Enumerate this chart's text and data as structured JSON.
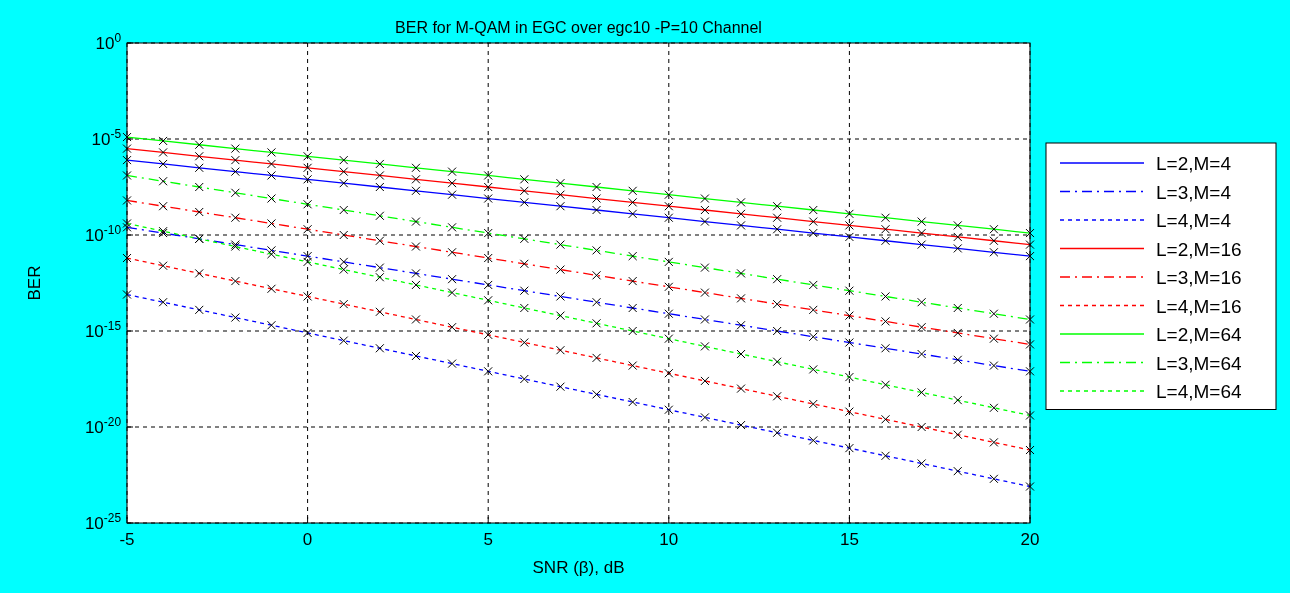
{
  "chart_data": {
    "type": "line",
    "title": "BER for M-QAM in EGC over egc10  -P=10 Channel",
    "xlabel": "SNR (β), dB",
    "ylabel": "BER",
    "x": [
      -5,
      -4,
      -3,
      -2,
      -1,
      0,
      1,
      2,
      3,
      4,
      5,
      6,
      7,
      8,
      9,
      10,
      11,
      12,
      13,
      14,
      15,
      16,
      17,
      18,
      19,
      20
    ],
    "xlim": [
      -5,
      20
    ],
    "xticks": [
      -5,
      0,
      5,
      10,
      15,
      20
    ],
    "ylim": [
      1e-25,
      1
    ],
    "log": true,
    "yticks": [
      {
        "value": 1e-25,
        "label": "10$^{-25}$"
      },
      {
        "value": 1e-20,
        "label": "10$^{-20}$"
      },
      {
        "value": 1e-15,
        "label": "10$^{-15}$"
      },
      {
        "value": 1e-10,
        "label": "10$^{-10}$"
      },
      {
        "value": 1e-05,
        "label": "10$^{-5}$"
      },
      {
        "value": 1,
        "label": "10$^{0}$"
      }
    ],
    "grid": true,
    "legend": "right",
    "marker": "cross",
    "series": [
      {
        "name": "L=2,M=4",
        "color": "#0000ff",
        "line_style": "solid",
        "values": [
          7.94e-07,
          5.01e-07,
          3.16e-07,
          2e-07,
          1.26e-07,
          7.94e-08,
          5.01e-08,
          3.16e-08,
          2e-08,
          1.26e-08,
          7.94e-09,
          5.01e-09,
          3.16e-09,
          2e-09,
          1.26e-09,
          7.94e-10,
          5.01e-10,
          3.16e-10,
          2e-10,
          1.26e-10,
          7.94e-11,
          5.01e-11,
          3.16e-11,
          2e-11,
          1.26e-11,
          7.94e-12
        ]
      },
      {
        "name": "L=3,M=4",
        "color": "#0000ff",
        "line_style": "dashed",
        "values": [
          2.51e-10,
          1.26e-10,
          6.31e-11,
          3.16e-11,
          1.58e-11,
          7.94e-12,
          3.98e-12,
          2e-12,
          1e-12,
          5.01e-13,
          2.51e-13,
          1.26e-13,
          6.31e-14,
          3.16e-14,
          1.58e-14,
          7.94e-15,
          3.98e-15,
          2e-15,
          1e-15,
          5.01e-16,
          2.51e-16,
          1.26e-16,
          6.31e-17,
          3.16e-17,
          1.58e-17,
          7.94e-18
        ]
      },
      {
        "name": "L=4,M=4",
        "color": "#0000ff",
        "line_style": "dotted",
        "values": [
          7.94e-14,
          3.16e-14,
          1.26e-14,
          5.01e-15,
          2e-15,
          7.94e-16,
          3.16e-16,
          1.26e-16,
          5.01e-17,
          2e-17,
          7.94e-18,
          3.16e-18,
          1.26e-18,
          5.01e-19,
          2e-19,
          7.94e-20,
          3.16e-20,
          1.26e-20,
          5.01e-21,
          2e-21,
          7.94e-22,
          3.16e-22,
          1.26e-22,
          5.01e-23,
          2e-23,
          7.94e-24
        ]
      },
      {
        "name": "L=2,M=16",
        "color": "#ff0000",
        "line_style": "solid",
        "values": [
          3.16e-06,
          2e-06,
          1.26e-06,
          7.94e-07,
          5.01e-07,
          3.16e-07,
          2e-07,
          1.26e-07,
          7.94e-08,
          5.01e-08,
          3.16e-08,
          2e-08,
          1.26e-08,
          7.94e-09,
          5.01e-09,
          3.16e-09,
          2e-09,
          1.26e-09,
          7.94e-10,
          5.01e-10,
          3.16e-10,
          2e-10,
          1.26e-10,
          7.94e-11,
          5.01e-11,
          3.16e-11
        ]
      },
      {
        "name": "L=3,M=16",
        "color": "#ff0000",
        "line_style": "dashed",
        "values": [
          6.31e-09,
          3.16e-09,
          1.58e-09,
          7.94e-10,
          3.98e-10,
          2e-10,
          1e-10,
          5.01e-11,
          2.51e-11,
          1.26e-11,
          6.31e-12,
          3.16e-12,
          1.58e-12,
          7.94e-13,
          3.98e-13,
          2e-13,
          1e-13,
          5.01e-14,
          2.51e-14,
          1.26e-14,
          6.31e-15,
          3.16e-15,
          1.58e-15,
          7.94e-16,
          3.98e-16,
          2e-16
        ]
      },
      {
        "name": "L=4,M=16",
        "color": "#ff0000",
        "line_style": "dotted",
        "values": [
          6.31e-12,
          2.51e-12,
          1e-12,
          3.98e-13,
          1.58e-13,
          6.31e-14,
          2.51e-14,
          1e-14,
          3.98e-15,
          1.58e-15,
          6.31e-16,
          2.51e-16,
          1e-16,
          3.98e-17,
          1.58e-17,
          6.31e-18,
          2.51e-18,
          1e-18,
          3.98e-19,
          1.58e-19,
          6.31e-20,
          2.51e-20,
          1e-20,
          3.98e-21,
          1.58e-21,
          6.31e-22
        ]
      },
      {
        "name": "L=2,M=64",
        "color": "#00ff00",
        "line_style": "solid",
        "values": [
          1.26e-05,
          7.94e-06,
          5.01e-06,
          3.16e-06,
          2e-06,
          1.26e-06,
          7.94e-07,
          5.01e-07,
          3.16e-07,
          2e-07,
          1.26e-07,
          7.94e-08,
          5.01e-08,
          3.16e-08,
          2e-08,
          1.26e-08,
          7.94e-09,
          5.01e-09,
          3.16e-09,
          2e-09,
          1.26e-09,
          7.94e-10,
          5.01e-10,
          3.16e-10,
          2e-10,
          1.26e-10
        ]
      },
      {
        "name": "L=3,M=64",
        "color": "#00ff00",
        "line_style": "dashed",
        "values": [
          1.26e-07,
          6.31e-08,
          3.16e-08,
          1.58e-08,
          7.94e-09,
          3.98e-09,
          2e-09,
          1e-09,
          5.01e-10,
          2.51e-10,
          1.26e-10,
          6.31e-11,
          3.16e-11,
          1.58e-11,
          7.94e-12,
          3.98e-12,
          2e-12,
          1e-12,
          5.01e-13,
          2.51e-13,
          1.26e-13,
          6.31e-14,
          3.16e-14,
          1.58e-14,
          7.94e-15,
          3.98e-15
        ]
      },
      {
        "name": "L=4,M=64",
        "color": "#00ff00",
        "line_style": "dotted",
        "values": [
          3.98e-10,
          1.58e-10,
          6.31e-11,
          2.51e-11,
          1e-11,
          3.98e-12,
          1.58e-12,
          6.31e-13,
          2.51e-13,
          1e-13,
          3.98e-14,
          1.58e-14,
          6.31e-15,
          2.51e-15,
          1e-15,
          3.98e-16,
          1.58e-16,
          6.31e-17,
          2.51e-17,
          1e-17,
          3.98e-18,
          1.58e-18,
          6.31e-19,
          2.51e-19,
          1e-19,
          3.98e-20
        ]
      }
    ]
  }
}
